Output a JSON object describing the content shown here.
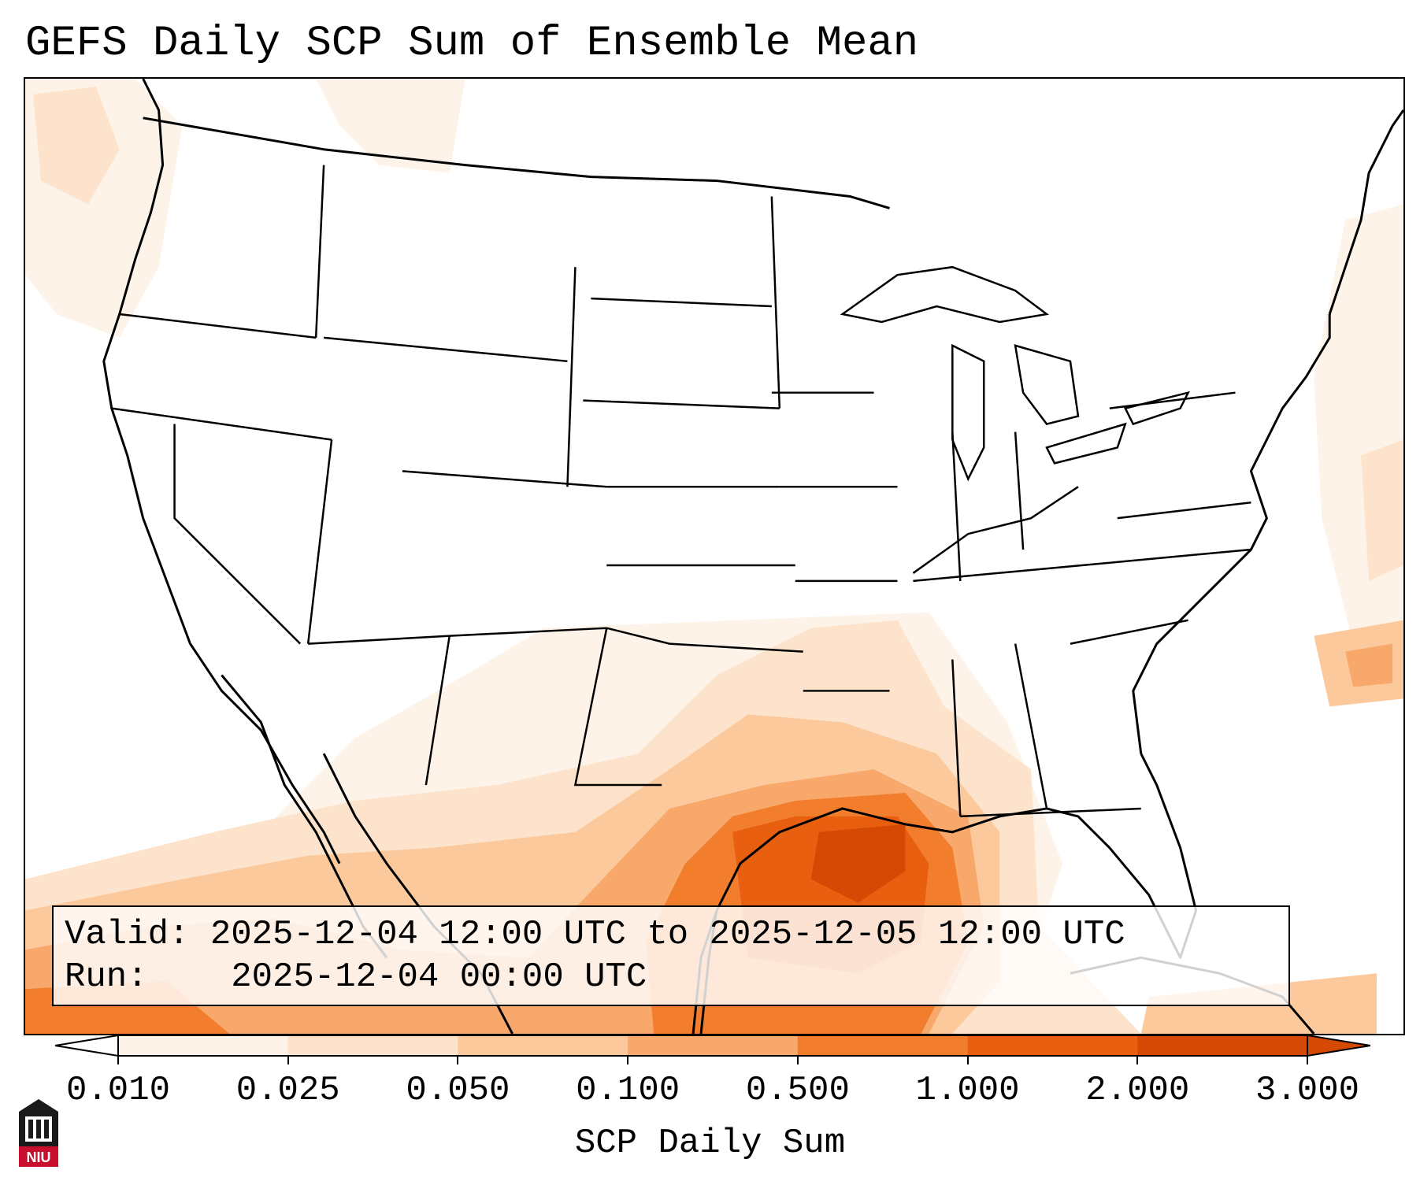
{
  "title": "GEFS Daily SCP Sum of Ensemble Mean",
  "info": {
    "valid_label": "Valid:",
    "valid_value": "2025-12-04 12:00 UTC to 2025-12-05 12:00 UTC",
    "run_label": "Run:",
    "run_value": "2025-12-04 00:00 UTC"
  },
  "colorbar": {
    "label": "SCP Daily Sum",
    "ticks": [
      "0.010",
      "0.025",
      "0.050",
      "0.100",
      "0.500",
      "1.000",
      "2.000",
      "3.000"
    ],
    "colors": [
      "#fef3e8",
      "#fde3cb",
      "#fbc99c",
      "#f8a86a",
      "#f27e2d",
      "#e85f0f",
      "#d44a05"
    ],
    "extend": "both"
  },
  "logo": {
    "text": "NIU",
    "icon": "niu-logo-icon",
    "color": "#c8102e"
  },
  "field_colors": {
    "very_low": "#fef3e8",
    "low": "#fde3cb",
    "moderate": "#fbc99c",
    "elevated": "#f8a86a",
    "high": "#f27e2d",
    "very_high": "#e85f0f",
    "peak": "#d44a05"
  }
}
